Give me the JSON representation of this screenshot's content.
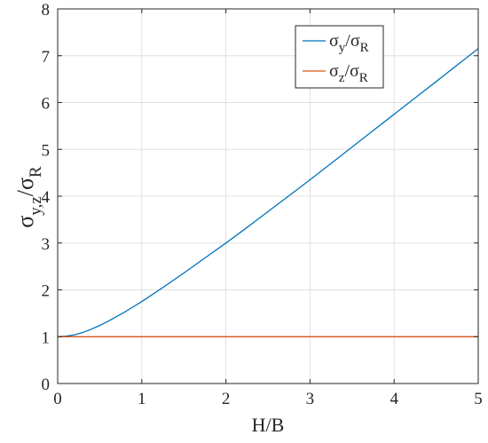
{
  "chart_data": {
    "type": "line",
    "xlabel": "H/B",
    "ylabel": {
      "main": "σ",
      "sub": "y,z",
      "slash": "/",
      "denom": "σ",
      "denom_sub": "R"
    },
    "xlim": [
      0,
      5
    ],
    "ylim": [
      0,
      8
    ],
    "xticks": [
      "0",
      "1",
      "2",
      "3",
      "4",
      "5"
    ],
    "yticks": [
      "0",
      "1",
      "2",
      "3",
      "4",
      "5",
      "6",
      "7",
      "8"
    ],
    "grid": true,
    "legend_position": "top-right",
    "series": [
      {
        "name": "σy/σR",
        "label": {
          "num": "σ",
          "num_sub": "y",
          "den": "σ",
          "den_sub": "R"
        },
        "color": "#0072bd",
        "x": [
          0,
          0.1,
          0.2,
          0.3,
          0.4,
          0.5,
          0.6,
          0.7,
          0.8,
          0.9,
          1.0,
          1.25,
          1.5,
          1.75,
          2.0,
          2.25,
          2.5,
          2.75,
          3.0,
          3.25,
          3.5,
          3.75,
          4.0,
          4.25,
          4.5,
          4.75,
          5.0
        ],
        "y": [
          1.0,
          1.01,
          1.04,
          1.09,
          1.16,
          1.24,
          1.33,
          1.43,
          1.53,
          1.64,
          1.75,
          2.05,
          2.36,
          2.68,
          3.0,
          3.33,
          3.67,
          4.01,
          4.35,
          4.7,
          5.05,
          5.4,
          5.75,
          6.1,
          6.45,
          6.8,
          7.15
        ]
      },
      {
        "name": "σz/σR",
        "label": {
          "num": "σ",
          "num_sub": "z",
          "den": "σ",
          "den_sub": "R"
        },
        "color": "#d95319",
        "x": [
          0,
          5
        ],
        "y": [
          1.0,
          1.0
        ]
      }
    ]
  }
}
